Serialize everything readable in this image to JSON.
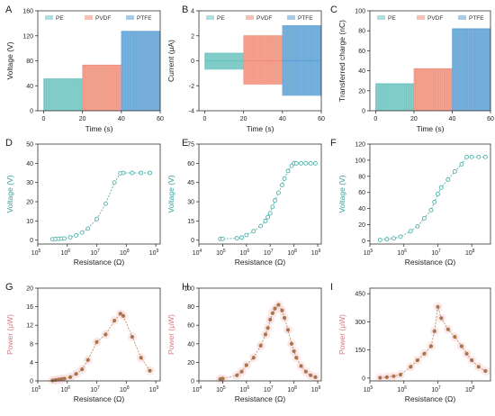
{
  "colors": {
    "pe": "#6ec4c0",
    "pvdf": "#f0907a",
    "ptfe": "#5fa2d6",
    "teal": "#4fb3ad",
    "power_marker": "#a9744f",
    "power_line": "#c98a66",
    "power_halo": "#f7dada",
    "axis": "#333333",
    "teal_label": "#3a9f9a",
    "rose_label": "#d97b80"
  },
  "chart_data": [
    {
      "panel": "A",
      "type": "area",
      "xlabel": "Time (s)",
      "ylabel": "Voltage (V)",
      "xlim": [
        -3,
        60
      ],
      "ylim": [
        0,
        160
      ],
      "xticks": [
        0,
        20,
        40,
        60
      ],
      "yticks": [
        0,
        40,
        80,
        120,
        160
      ],
      "legend": "top",
      "series": [
        {
          "name": "PE",
          "x": [
            0,
            20
          ],
          "low": 0,
          "high": 51
        },
        {
          "name": "PVDF",
          "x": [
            20,
            40
          ],
          "low": 0,
          "high": 73
        },
        {
          "name": "PTFE",
          "x": [
            40,
            60
          ],
          "low": 0,
          "high": 127
        }
      ]
    },
    {
      "panel": "B",
      "type": "area",
      "xlabel": "Time (s)",
      "ylabel": "Current (μA)",
      "xlim": [
        -3,
        60
      ],
      "ylim": [
        -4,
        4
      ],
      "xticks": [
        0,
        20,
        40,
        60
      ],
      "yticks": [
        -4,
        -2,
        0,
        2,
        4
      ],
      "legend": "top",
      "series": [
        {
          "name": "PE",
          "x": [
            0,
            20
          ],
          "low": -0.7,
          "high": 0.6
        },
        {
          "name": "PVDF",
          "x": [
            20,
            40
          ],
          "low": -1.9,
          "high": 2.0
        },
        {
          "name": "PTFE",
          "x": [
            40,
            60
          ],
          "low": -2.8,
          "high": 2.8
        }
      ]
    },
    {
      "panel": "C",
      "type": "area",
      "xlabel": "Time (s)",
      "ylabel": "Transferred charge (nC)",
      "xlim": [
        -3,
        60
      ],
      "ylim": [
        0,
        100
      ],
      "xticks": [
        0,
        20,
        40,
        60
      ],
      "yticks": [
        0,
        20,
        40,
        60,
        80,
        100
      ],
      "legend": "top",
      "series": [
        {
          "name": "PE",
          "x": [
            0,
            20
          ],
          "low": 0,
          "high": 27
        },
        {
          "name": "PVDF",
          "x": [
            20,
            40
          ],
          "low": 0,
          "high": 42
        },
        {
          "name": "PTFE",
          "x": [
            40,
            60
          ],
          "low": 0,
          "high": 82
        }
      ]
    },
    {
      "panel": "D",
      "type": "scatter",
      "scale": "log-x",
      "xlabel": "Resistance (Ω)",
      "ylabel": "Voltage (V)",
      "xlim": [
        5,
        9.15
      ],
      "ylim": [
        -2,
        50
      ],
      "xticks": [
        5,
        6,
        7,
        8,
        9
      ],
      "yticks": [
        0,
        10,
        20,
        30,
        40,
        50
      ],
      "x": [
        5.5,
        5.6,
        5.7,
        5.8,
        5.9,
        6.1,
        6.3,
        6.5,
        6.7,
        7.0,
        7.3,
        7.6,
        7.8,
        7.9,
        8.2,
        8.5,
        8.8
      ],
      "y": [
        0.5,
        0.6,
        0.7,
        0.8,
        0.9,
        1.5,
        2.5,
        4,
        6,
        11,
        19,
        30,
        34.8,
        35,
        35,
        35,
        35
      ]
    },
    {
      "panel": "E",
      "type": "scatter",
      "scale": "log-x",
      "xlabel": "Resistance (Ω)",
      "ylabel": "Voltage (V)",
      "xlim": [
        4,
        9.15
      ],
      "ylim": [
        -3,
        75
      ],
      "xticks": [
        4,
        5,
        6,
        7,
        8,
        9
      ],
      "yticks": [
        0,
        15,
        30,
        45,
        60,
        75
      ],
      "x": [
        4.9,
        5.0,
        5.6,
        5.8,
        6.0,
        6.3,
        6.6,
        6.8,
        6.9,
        7.0,
        7.1,
        7.2,
        7.35,
        7.5,
        7.6,
        7.75,
        7.9,
        8.0,
        8.1,
        8.3,
        8.5,
        8.7,
        8.9
      ],
      "y": [
        1,
        1,
        1.5,
        2,
        4,
        7,
        11,
        15,
        18,
        21,
        26,
        31,
        37,
        43,
        48,
        54,
        58,
        60,
        60,
        60,
        60,
        60,
        60
      ]
    },
    {
      "panel": "F",
      "type": "scatter",
      "scale": "log-x",
      "xlabel": "Resistance (Ω)",
      "ylabel": "Voltage (V)",
      "xlim": [
        5,
        8.55
      ],
      "ylim": [
        -4,
        120
      ],
      "xticks": [
        5,
        6,
        7,
        8
      ],
      "yticks": [
        0,
        20,
        40,
        60,
        80,
        100,
        120
      ],
      "x": [
        5.3,
        5.5,
        5.7,
        5.9,
        6.2,
        6.4,
        6.6,
        6.8,
        6.9,
        7.0,
        7.1,
        7.3,
        7.5,
        7.7,
        7.85,
        8.0,
        8.2,
        8.4
      ],
      "y": [
        1,
        2,
        3,
        5,
        12,
        18,
        28,
        38,
        48,
        58,
        66,
        76,
        86,
        95,
        104,
        104,
        104,
        104
      ]
    },
    {
      "panel": "G",
      "type": "line",
      "scale": "log-x",
      "xlabel": "Resistance (Ω)",
      "ylabel": "Power (μW)",
      "xlim": [
        5,
        9.15
      ],
      "ylim": [
        0,
        20
      ],
      "xticks": [
        5,
        6,
        7,
        8,
        9
      ],
      "yticks": [
        0,
        4,
        8,
        12,
        16,
        20
      ],
      "x": [
        5.5,
        5.6,
        5.7,
        5.8,
        5.9,
        6.1,
        6.3,
        6.5,
        6.7,
        7.0,
        7.3,
        7.6,
        7.8,
        7.9,
        8.2,
        8.5,
        8.8
      ],
      "y": [
        0.1,
        0.2,
        0.3,
        0.4,
        0.5,
        0.8,
        1.5,
        2.5,
        4.5,
        8.4,
        10,
        13,
        14.5,
        14,
        9.5,
        5,
        2.2
      ]
    },
    {
      "panel": "H",
      "type": "line",
      "scale": "log-x",
      "xlabel": "Resistance (Ω)",
      "ylabel": "Power (μW)",
      "xlim": [
        4,
        9.15
      ],
      "ylim": [
        0,
        100
      ],
      "xticks": [
        4,
        5,
        6,
        7,
        8,
        9
      ],
      "yticks": [
        0,
        20,
        40,
        60,
        80,
        100
      ],
      "x": [
        4.9,
        5.0,
        5.6,
        5.8,
        6.0,
        6.3,
        6.6,
        6.8,
        6.9,
        7.0,
        7.1,
        7.2,
        7.35,
        7.5,
        7.6,
        7.75,
        7.9,
        8.0,
        8.1,
        8.3,
        8.5,
        8.7,
        8.9
      ],
      "y": [
        2,
        2.5,
        6,
        10,
        17,
        25,
        38,
        50,
        57,
        66,
        73,
        78,
        82,
        76,
        68,
        55,
        40,
        32,
        25,
        16,
        10,
        6,
        4
      ]
    },
    {
      "panel": "I",
      "type": "line",
      "scale": "log-x",
      "xlabel": "Resistance (Ω)",
      "ylabel": "Power (μW)",
      "xlim": [
        5,
        8.55
      ],
      "ylim": [
        -15,
        480
      ],
      "xticks": [
        5,
        6,
        7,
        8
      ],
      "yticks": [
        0,
        150,
        300,
        450
      ],
      "x": [
        5.3,
        5.5,
        5.7,
        5.9,
        6.2,
        6.4,
        6.6,
        6.8,
        6.9,
        7.0,
        7.1,
        7.3,
        7.5,
        7.7,
        7.85,
        8.0,
        8.2,
        8.4
      ],
      "y": [
        2,
        5,
        10,
        18,
        60,
        95,
        130,
        170,
        250,
        380,
        320,
        260,
        220,
        170,
        130,
        95,
        60,
        38
      ]
    }
  ]
}
